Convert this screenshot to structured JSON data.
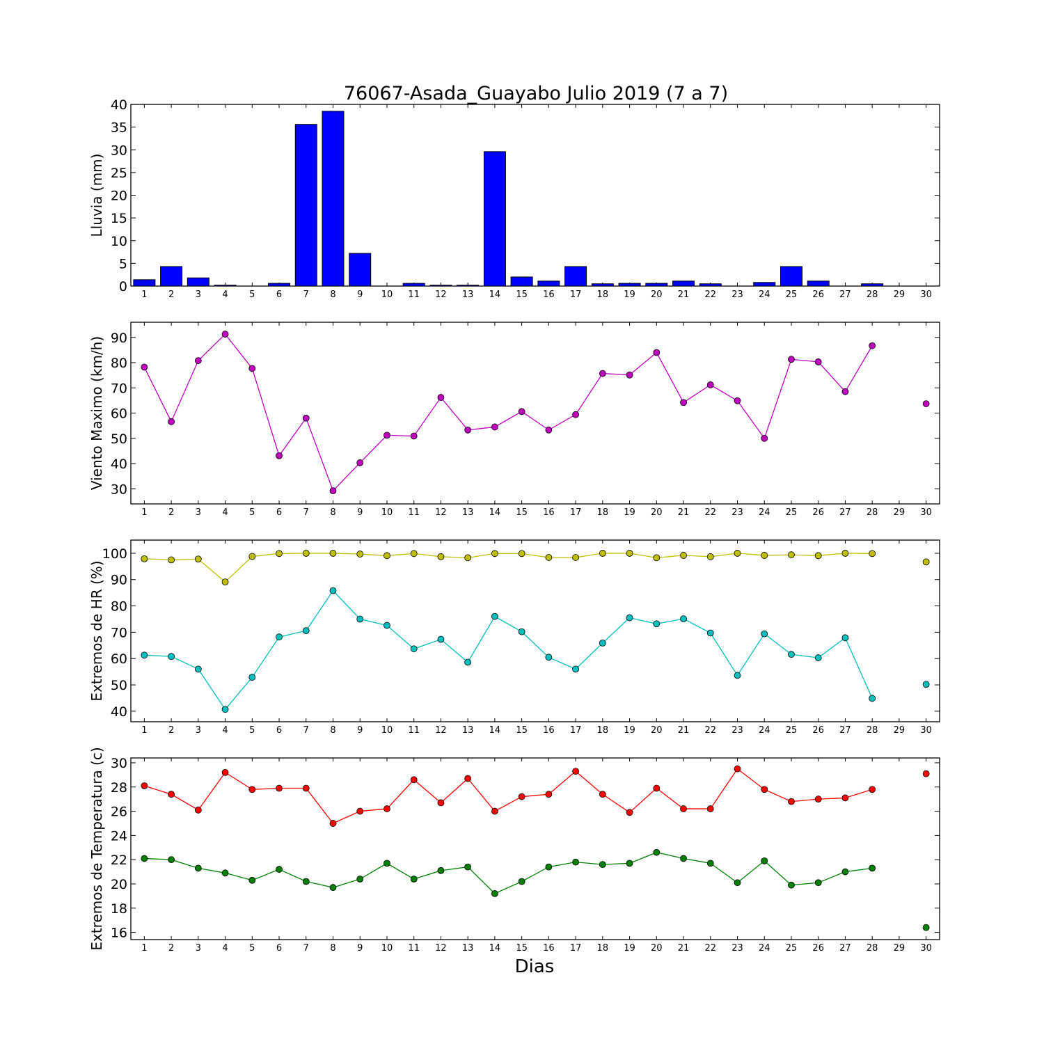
{
  "title": "76067-Asada_Guayabo Julio 2019  (7 a 7)",
  "xlabel": "Dias",
  "chart_data": [
    {
      "type": "bar",
      "ylabel": "Lluvia (mm)",
      "ylim": [
        0,
        40
      ],
      "yticks": [
        0,
        5,
        10,
        15,
        20,
        25,
        30,
        35,
        40
      ],
      "xticks": [
        1,
        2,
        3,
        4,
        5,
        6,
        7,
        8,
        9,
        10,
        11,
        12,
        13,
        14,
        15,
        16,
        17,
        18,
        19,
        20,
        21,
        22,
        23,
        24,
        25,
        26,
        27,
        28,
        29,
        30
      ],
      "color": "#0000ff",
      "series": [
        {
          "values": [
            1.4,
            4.3,
            1.8,
            0.2,
            0,
            0.6,
            35.6,
            38.5,
            7.2,
            0,
            0.6,
            0.2,
            0.2,
            29.6,
            2.0,
            1.1,
            4.3,
            0.5,
            0.6,
            0.6,
            1.1,
            0.5,
            0,
            0.8,
            4.3,
            1.1,
            0,
            0.5,
            0,
            0
          ]
        }
      ]
    },
    {
      "type": "line",
      "ylabel": "Viento Maximo (km/h)",
      "ylim": [
        24,
        96
      ],
      "yticks": [
        30,
        40,
        50,
        60,
        70,
        80,
        90
      ],
      "xticks": [
        1,
        2,
        3,
        4,
        5,
        6,
        7,
        8,
        9,
        10,
        11,
        12,
        13,
        14,
        15,
        16,
        17,
        18,
        19,
        20,
        21,
        22,
        23,
        24,
        25,
        26,
        27,
        28,
        29,
        30
      ],
      "series": [
        {
          "color": "#bf00bf",
          "values": [
            78.2,
            56.6,
            80.8,
            91.3,
            77.7,
            43.1,
            58.0,
            29.2,
            40.3,
            51.2,
            50.9,
            66.2,
            53.3,
            54.5,
            60.6,
            53.3,
            59.4,
            75.7,
            75.1,
            84.0,
            64.2,
            71.2,
            64.9,
            50.0,
            81.3,
            80.3,
            68.5,
            86.7,
            null,
            63.7
          ]
        }
      ]
    },
    {
      "type": "line",
      "ylabel": "Extremos de HR (%)",
      "ylim": [
        36,
        105
      ],
      "yticks": [
        40,
        50,
        60,
        70,
        80,
        90,
        100
      ],
      "xticks": [
        1,
        2,
        3,
        4,
        5,
        6,
        7,
        8,
        9,
        10,
        11,
        12,
        13,
        14,
        15,
        16,
        17,
        18,
        19,
        20,
        21,
        22,
        23,
        24,
        25,
        26,
        27,
        28,
        29,
        30
      ],
      "series": [
        {
          "color": "#bfbf00",
          "values": [
            97.9,
            97.5,
            97.8,
            89.1,
            98.8,
            99.9,
            100,
            100,
            99.7,
            99.1,
            99.9,
            98.7,
            98.3,
            99.9,
            99.9,
            98.4,
            98.4,
            100,
            100,
            98.3,
            99.2,
            98.7,
            100,
            99.2,
            99.4,
            99.1,
            100,
            99.9,
            null,
            96.7
          ]
        },
        {
          "color": "#00bfbf",
          "values": [
            61.3,
            60.8,
            56.0,
            40.7,
            52.9,
            68.2,
            70.6,
            85.8,
            75.0,
            72.6,
            63.7,
            67.3,
            58.6,
            76.0,
            70.2,
            60.5,
            56.0,
            65.9,
            75.5,
            73.2,
            75.1,
            69.7,
            53.6,
            69.4,
            61.6,
            60.3,
            67.9,
            44.9,
            null,
            50.2
          ]
        }
      ]
    },
    {
      "type": "line",
      "ylabel": "Extremos de Temperatura (c)",
      "ylim": [
        15.4,
        30.4
      ],
      "yticks": [
        16,
        18,
        20,
        22,
        24,
        26,
        28,
        30
      ],
      "xticks": [
        1,
        2,
        3,
        4,
        5,
        6,
        7,
        8,
        9,
        10,
        11,
        12,
        13,
        14,
        15,
        16,
        17,
        18,
        19,
        20,
        21,
        22,
        23,
        24,
        25,
        26,
        27,
        28,
        29,
        30
      ],
      "series": [
        {
          "color": "#ff0000",
          "values": [
            28.1,
            27.4,
            26.1,
            29.2,
            27.8,
            27.9,
            27.9,
            25.0,
            26.0,
            26.2,
            28.6,
            26.7,
            28.7,
            26.0,
            27.2,
            27.4,
            29.3,
            27.4,
            25.9,
            27.9,
            26.2,
            26.2,
            29.5,
            27.8,
            26.8,
            27.0,
            27.1,
            27.8,
            null,
            29.1
          ]
        },
        {
          "color": "#008000",
          "values": [
            22.1,
            22.0,
            21.3,
            20.9,
            20.3,
            21.2,
            20.2,
            19.7,
            20.4,
            21.7,
            20.4,
            21.1,
            21.4,
            19.2,
            20.2,
            21.4,
            21.8,
            21.6,
            21.7,
            22.6,
            22.1,
            21.7,
            20.1,
            21.9,
            19.9,
            20.1,
            21.0,
            21.3,
            null,
            16.4
          ]
        }
      ]
    }
  ]
}
